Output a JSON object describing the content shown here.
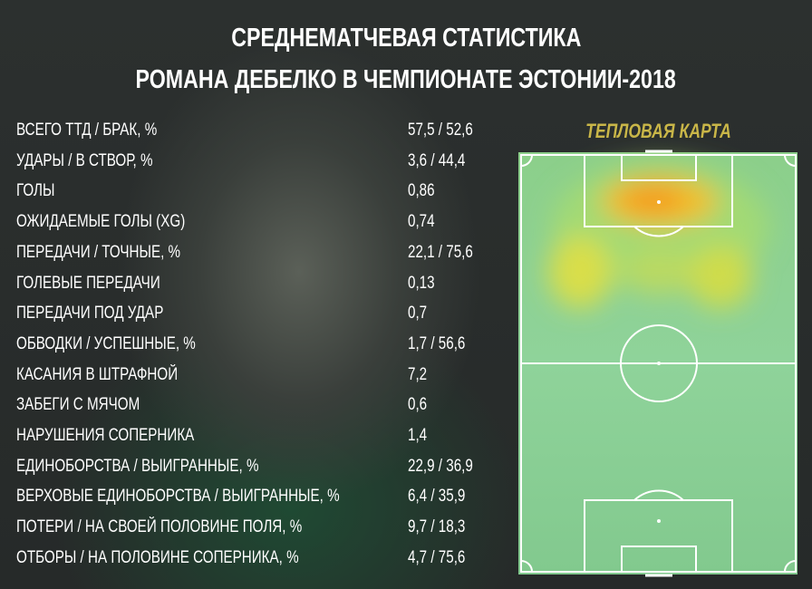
{
  "header": {
    "title_line1": "СРЕДНЕМАТЧЕВАЯ СТАТИСТИКА",
    "title_line2": "РОМАНА ДЕБЕЛКО В ЧЕМПИОНАТЕ ЭСТОНИИ-2018"
  },
  "heatmap": {
    "title": "ТЕПЛОВАЯ КАРТА"
  },
  "table": {
    "rows": [
      [
        "ВСЕГО ТТД / БРАК, %",
        "57,5 / 52,6"
      ],
      [
        "УДАРЫ / В СТВОР, %",
        "3,6 / 44,4"
      ],
      [
        "ГОЛЫ",
        "0,86"
      ],
      [
        "ОЖИДАЕМЫЕ ГОЛЫ (XG)",
        "0,74"
      ],
      [
        "ПЕРЕДАЧИ / ТОЧНЫЕ, %",
        "22,1 / 75,6"
      ],
      [
        "ГОЛЕВЫЕ ПЕРЕДАЧИ",
        "0,13"
      ],
      [
        "ПЕРЕДАЧИ ПОД УДАР",
        "0,7"
      ],
      [
        "ОБВОДКИ / УСПЕШНЫЕ, %",
        "1,7 / 56,6"
      ],
      [
        "КАСАНИЯ В ШТРАФНОЙ",
        "7,2"
      ],
      [
        "ЗАБЕГИ С МЯЧОМ",
        "0,6"
      ],
      [
        "НАРУШЕНИЯ СОПЕРНИКА",
        "1,4"
      ],
      [
        "ЕДИНОБОРСТВА / ВЫИГРАННЫЕ, %",
        "22,9 / 36,9"
      ],
      [
        "ВЕРХОВЫЕ ЕДИНОБОРСТВА / ВЫИГРАННЫЕ, %",
        "6,4 / 35,9"
      ],
      [
        "ПОТЕРИ / НА СВОЕЙ ПОЛОВИНЕ ПОЛЯ, %",
        "9,7 / 18,3"
      ],
      [
        "ОТБОРЫ / НА ПОЛОВИНЕ СОПЕРНИКА, %",
        "4,7 / 75,6"
      ]
    ]
  }
}
